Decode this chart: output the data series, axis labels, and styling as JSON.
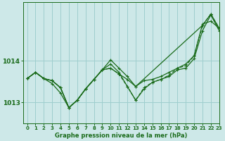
{
  "title": "Graphe pression niveau de la mer (hPa)",
  "background_color": "#cde8e8",
  "grid_color": "#9ecece",
  "line_color": "#1a6b1a",
  "xlim": [
    -0.5,
    23
  ],
  "ylim": [
    1012.5,
    1015.4
  ],
  "yticks": [
    1013,
    1014
  ],
  "xticks": [
    0,
    1,
    2,
    3,
    4,
    5,
    6,
    7,
    8,
    9,
    10,
    11,
    12,
    13,
    14,
    15,
    16,
    17,
    18,
    19,
    20,
    21,
    22,
    23
  ],
  "series": [
    {
      "x": [
        0,
        1,
        2,
        3,
        4,
        5,
        6,
        7,
        8,
        9,
        10,
        11,
        12,
        13,
        14,
        15,
        16,
        17,
        18,
        19,
        20,
        21,
        22,
        23
      ],
      "y": [
        1013.57,
        1013.72,
        1013.57,
        1013.45,
        1013.22,
        1012.87,
        1013.05,
        1013.32,
        1013.55,
        1013.78,
        1013.92,
        1013.72,
        1013.38,
        1013.05,
        1013.32,
        1013.48,
        1013.55,
        1013.62,
        1013.78,
        1013.82,
        1014.05,
        1014.72,
        1015.1,
        1014.72
      ],
      "style": "solid"
    },
    {
      "x": [
        0,
        1,
        2,
        3,
        4,
        5,
        6,
        7,
        8,
        9,
        10,
        11,
        12,
        13,
        14,
        15,
        16,
        17,
        18,
        19,
        20,
        21,
        22,
        23
      ],
      "y": [
        1013.57,
        1013.72,
        1013.57,
        1013.52,
        1013.35,
        1012.87,
        1013.05,
        1013.32,
        1013.55,
        1013.78,
        1014.02,
        1013.82,
        1013.62,
        1013.38,
        1013.52,
        1013.55,
        1013.62,
        1013.72,
        1013.82,
        1013.92,
        1014.12,
        1014.88,
        1014.95,
        1014.78
      ],
      "style": "solid"
    },
    {
      "x": [
        0,
        1,
        2,
        3,
        4,
        5,
        6,
        7,
        8,
        9,
        10,
        11,
        12,
        13,
        21,
        22,
        23
      ],
      "y": [
        1013.57,
        1013.72,
        1013.57,
        1013.52,
        1013.35,
        1012.87,
        1013.05,
        1013.32,
        1013.55,
        1013.78,
        1013.82,
        1013.68,
        1013.55,
        1013.38,
        1014.85,
        1015.12,
        1014.78
      ],
      "style": "solid"
    },
    {
      "x": [
        0,
        1,
        2,
        3,
        4,
        5,
        6,
        7,
        8,
        9,
        10,
        11,
        12,
        13,
        14,
        15,
        16,
        17,
        18,
        19,
        20,
        21,
        22,
        23
      ],
      "y": [
        1013.57,
        1013.72,
        1013.57,
        1013.52,
        1013.35,
        1012.87,
        1013.05,
        1013.32,
        1013.55,
        1013.78,
        1013.82,
        1013.68,
        1013.38,
        1013.05,
        1013.35,
        1013.48,
        1013.55,
        1013.65,
        1013.82,
        1013.88,
        1014.12,
        1014.85,
        1015.12,
        1014.78
      ],
      "style": "dashed"
    }
  ],
  "marker_size": 3.0,
  "line_width": 0.9,
  "tick_fontsize": 5.0,
  "xlabel_fontsize": 6.0
}
